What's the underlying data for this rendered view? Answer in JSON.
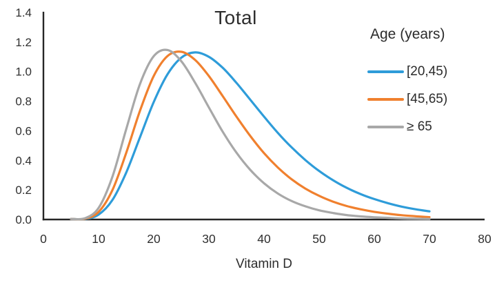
{
  "title": "Total",
  "legend": {
    "title": "Age (years)",
    "entries": [
      {
        "label": "[20,45)",
        "color": "#2E9CD9"
      },
      {
        "label": "[45,65)",
        "color": "#F0802E"
      },
      {
        "label": "≥ 65",
        "color": "#A8A8A8"
      }
    ]
  },
  "axis": {
    "line_color": "#262626",
    "tick_label_color": "#2f2f2f",
    "y_tick_labels": [
      "0.0",
      "0.2",
      "0.4",
      "0.6",
      "0.8",
      "1.0",
      "1.2",
      "1.4"
    ],
    "x_tick_labels": [
      "0",
      "10",
      "20",
      "30",
      "40",
      "50",
      "60",
      "70",
      "80"
    ]
  },
  "chart_data": {
    "type": "line",
    "title": "Total",
    "xlabel": "Vitamin D",
    "ylabel": "",
    "xlim": [
      0,
      80
    ],
    "ylim": [
      0,
      1.4
    ],
    "x_ticks": [
      0,
      10,
      20,
      30,
      40,
      50,
      60,
      70,
      80
    ],
    "y_ticks": [
      0.0,
      0.2,
      0.4,
      0.6,
      0.8,
      1.0,
      1.2,
      1.4
    ],
    "grid": false,
    "legend_position": "right",
    "legend_title": "Age (years)",
    "x": [
      5,
      7.5,
      10,
      12.5,
      15,
      17.5,
      20,
      22.5,
      25,
      27.5,
      30,
      32.5,
      35,
      37.5,
      40,
      42.5,
      45,
      47.5,
      50,
      52.5,
      55,
      57.5,
      60,
      62.5,
      65,
      67.5,
      70
    ],
    "series": [
      {
        "name": "[20,45)",
        "color": "#2E9CD9",
        "peak": {
          "x": 27.5,
          "y": 1.13
        },
        "values": [
          0.0,
          0.003,
          0.033,
          0.131,
          0.316,
          0.555,
          0.794,
          0.982,
          1.094,
          1.13,
          1.1,
          1.026,
          0.924,
          0.81,
          0.696,
          0.586,
          0.488,
          0.402,
          0.328,
          0.266,
          0.214,
          0.172,
          0.138,
          0.11,
          0.087,
          0.069,
          0.055
        ]
      },
      {
        "name": "[45,65)",
        "color": "#F0802E",
        "peak": {
          "x": 24.5,
          "y": 1.135
        },
        "values": [
          0.0,
          0.005,
          0.051,
          0.198,
          0.449,
          0.734,
          0.97,
          1.105,
          1.134,
          1.079,
          0.97,
          0.835,
          0.696,
          0.565,
          0.449,
          0.352,
          0.272,
          0.209,
          0.16,
          0.121,
          0.091,
          0.069,
          0.052,
          0.039,
          0.029,
          0.022,
          0.016
        ]
      },
      {
        "name": "≥ 65",
        "color": "#A8A8A8",
        "peak": {
          "x": 22,
          "y": 1.148
        },
        "values": [
          0.0,
          0.008,
          0.078,
          0.288,
          0.609,
          0.915,
          1.104,
          1.146,
          1.07,
          0.925,
          0.758,
          0.594,
          0.452,
          0.336,
          0.245,
          0.176,
          0.125,
          0.089,
          0.062,
          0.044,
          0.03,
          0.021,
          0.015,
          0.011,
          0.007,
          0.005,
          0.003
        ]
      }
    ]
  }
}
